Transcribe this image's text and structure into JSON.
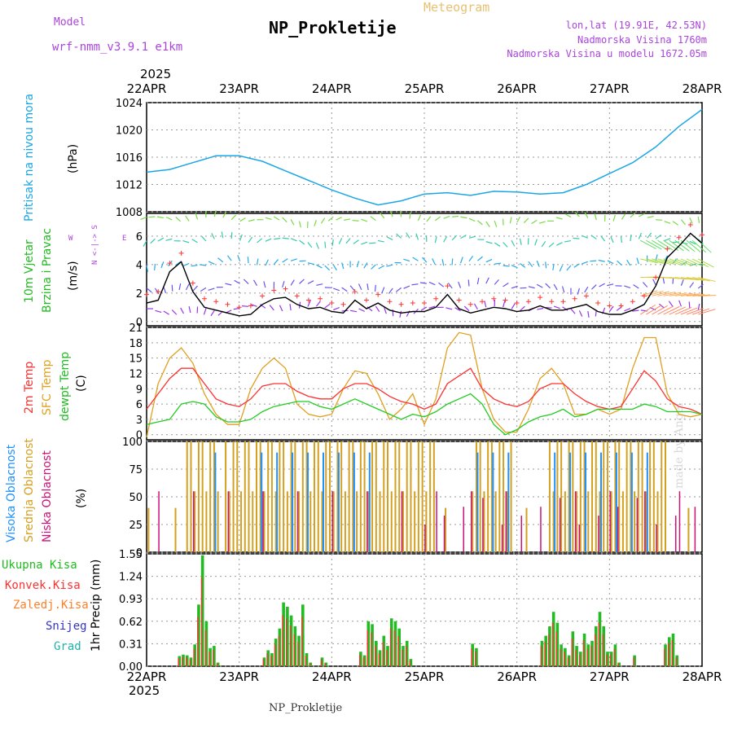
{
  "header": {
    "model_label": "Model",
    "model_name": "wrf-nmm_v3.9.1  e1km",
    "title": "NP_Prokletije",
    "subtitle": "Meteogram",
    "lonlat": "lon,lat (19.91E, 42.53N)",
    "elevation": "Nadmorska Visina 1760m",
    "model_elevation": "Nadmorska Visina u modelu 1672.05m",
    "watermark": "made by Angel",
    "footer": "NP_Prokletije"
  },
  "x_axis": {
    "year": "2025",
    "dates": [
      "22APR",
      "23APR",
      "24APR",
      "25APR",
      "26APR",
      "27APR",
      "28APR"
    ]
  },
  "colors": {
    "pressure": "#1aa6e6",
    "wind_speed": "#000000",
    "wind_gust": "#ff3333",
    "t2m": "#ff3030",
    "tsfc": "#e0a020",
    "dewpt": "#22cc22",
    "cloud_high": "#1e90ff",
    "cloud_mid": "#d4a020",
    "cloud_low": "#cc1177",
    "precip_total": "#22bb22",
    "precip_conv": "#ff3030",
    "precip_grid": "#ff7f27",
    "snow": "#3333cc",
    "graupel": "#20b2aa"
  },
  "panels": {
    "pressure": {
      "ylabel_name": "Pritisak na nivou mora",
      "unit": "(hPa)"
    },
    "wind": {
      "ylabel_line1": "10m Vjetar",
      "ylabel_line2": "Brzina i Pravac",
      "unit": "(m/s)",
      "compass_ns": "N <-|-> S",
      "compass_w": "W",
      "compass_e": "E"
    },
    "temp": {
      "label_t2m": "2m Temp",
      "label_tsfc": "SFC Temp",
      "label_dewpt": "dewpt Temp",
      "unit": "(C)"
    },
    "cloud": {
      "label_high": "Visoka Oblacnost",
      "label_mid": "Srednja Oblacnost",
      "label_low": "Niska Oblacnost",
      "unit": "(%)"
    },
    "precip": {
      "legend": [
        "Ukupna Kisa",
        "Konvek.Kisa",
        "Zaledj.Kisa",
        "Snijeg",
        "Grad"
      ],
      "ylabel": "1hr Precip (mm)"
    }
  },
  "chart_data": [
    {
      "type": "line",
      "title": "",
      "ylabel": "Pritisak na nivou mora (hPa)",
      "ylim": [
        1008,
        1024
      ],
      "yticks": [
        1008,
        1012,
        1016,
        1020,
        1024
      ],
      "x_hours": [
        0,
        6,
        12,
        18,
        24,
        30,
        36,
        42,
        48,
        54,
        60,
        66,
        72,
        78,
        84,
        90,
        96,
        102,
        108,
        114,
        120,
        126,
        132,
        138,
        144
      ],
      "series": [
        {
          "name": "Pritisak na nivou mora",
          "values": [
            1013.8,
            1014.2,
            1015.2,
            1016.2,
            1016.2,
            1015.4,
            1014,
            1012.6,
            1011.2,
            1010.0,
            1009.0,
            1009.6,
            1010.6,
            1010.8,
            1010.4,
            1011.0,
            1010.9,
            1010.6,
            1010.8,
            1012.0,
            1013.6,
            1015.2,
            1017.5,
            1020.5,
            1023.0
          ]
        }
      ]
    },
    {
      "type": "line",
      "title": "",
      "ylabel": "10m Vjetar Brzina i Pravac (m/s)",
      "ylim": [
        -0.3,
        7.6
      ],
      "yticks": [
        0,
        2,
        4,
        6
      ],
      "x_hours": [
        0,
        3,
        6,
        9,
        12,
        15,
        18,
        21,
        24,
        27,
        30,
        33,
        36,
        39,
        42,
        45,
        48,
        51,
        54,
        57,
        60,
        63,
        66,
        69,
        72,
        75,
        78,
        81,
        84,
        87,
        90,
        93,
        96,
        99,
        102,
        105,
        108,
        111,
        114,
        117,
        120,
        123,
        126,
        129,
        132,
        135,
        138,
        141,
        144
      ],
      "series": [
        {
          "name": "10m Vjetar",
          "values": [
            1.3,
            1.5,
            3.5,
            4.2,
            2.1,
            1.0,
            0.8,
            0.6,
            0.4,
            0.5,
            1.2,
            1.6,
            1.7,
            1.2,
            0.9,
            1.0,
            0.7,
            0.6,
            1.5,
            0.9,
            1.3,
            0.8,
            0.6,
            0.7,
            0.7,
            1.0,
            1.9,
            0.9,
            0.6,
            0.8,
            1.0,
            0.9,
            0.7,
            0.8,
            1.1,
            0.8,
            0.8,
            1.0,
            1.2,
            0.7,
            0.5,
            0.5,
            0.8,
            1.2,
            2.5,
            4.5,
            5.3,
            6.2,
            5.5
          ]
        }
      ]
    },
    {
      "type": "line",
      "title": "",
      "ylabel": "Temp (C)",
      "ylim": [
        -1,
        21
      ],
      "yticks": [
        0,
        3,
        6,
        9,
        12,
        15,
        18,
        21
      ],
      "x_hours": [
        0,
        3,
        6,
        9,
        12,
        15,
        18,
        21,
        24,
        27,
        30,
        33,
        36,
        39,
        42,
        45,
        48,
        51,
        54,
        57,
        60,
        63,
        66,
        69,
        72,
        75,
        78,
        81,
        84,
        87,
        90,
        93,
        96,
        99,
        102,
        105,
        108,
        111,
        114,
        117,
        120,
        123,
        126,
        129,
        132,
        135,
        138,
        141,
        144
      ],
      "series": [
        {
          "name": "2m Temp",
          "values": [
            5,
            8,
            11,
            13,
            13,
            10,
            7,
            6,
            5.5,
            7,
            9.5,
            10,
            10,
            8.5,
            7.5,
            7,
            7,
            9,
            10,
            10,
            9,
            7.5,
            6.5,
            6,
            5,
            6,
            10,
            11.5,
            13,
            9,
            7,
            6,
            5.5,
            6.5,
            9,
            10,
            10,
            8,
            6.5,
            5.5,
            5,
            5.5,
            9,
            12.5,
            10.5,
            7,
            5.5,
            5,
            4
          ]
        },
        {
          "name": "SFC Temp",
          "values": [
            -0.5,
            10,
            15,
            17,
            14,
            8,
            4,
            2,
            2,
            9,
            13,
            15,
            13,
            6,
            4,
            3.5,
            4,
            9,
            12.5,
            12,
            8,
            3,
            5,
            8,
            2,
            7,
            17,
            20,
            19.5,
            9,
            3,
            0.5,
            0.5,
            5,
            11,
            13,
            10,
            4,
            4,
            5,
            4,
            5,
            13,
            19,
            19,
            8,
            4,
            3.5,
            4
          ]
        },
        {
          "name": "dewpt Temp",
          "values": [
            2,
            2.5,
            3,
            6,
            6.5,
            6,
            3.5,
            2.5,
            2.5,
            3,
            4.5,
            5.5,
            6,
            6.5,
            6.5,
            5.5,
            5,
            6,
            7,
            6,
            5,
            4,
            3,
            4,
            3.5,
            4.5,
            6,
            7,
            8,
            6,
            2,
            0,
            1,
            2.5,
            3.5,
            4,
            5,
            3.5,
            4,
            5,
            5,
            5,
            5,
            6,
            5.5,
            4.5,
            4.5,
            4.5,
            4
          ]
        }
      ]
    },
    {
      "type": "bar",
      "title": "",
      "ylabel": "Oblacnost (%)",
      "ylim": [
        0,
        100
      ],
      "yticks": [
        0,
        25,
        50,
        75,
        100
      ],
      "notes": "hourly bars 0-144h",
      "series": [
        {
          "name": "Visoka Oblacnost",
          "values_hourly_summary": "high cloud near 100% during 16-60h, 84-94h, 102-132h; scattered elsewhere"
        },
        {
          "name": "Srednja Oblacnost",
          "values_hourly_summary": "mid cloud 100% in dense blocks 10-74h and 84-92h, 104-134h"
        },
        {
          "name": "Niska Oblacnost",
          "values_hourly_summary": "low cloud scattered 0-60% after 70h"
        }
      ]
    },
    {
      "type": "bar",
      "title": "",
      "ylabel": "1hr Precip (mm)",
      "ylim": [
        0,
        1.55
      ],
      "yticks": [
        0,
        0.31,
        0.62,
        0.93,
        1.24,
        1.55
      ],
      "x_hours": [
        8,
        9,
        10,
        11,
        12,
        13,
        14,
        15,
        16,
        17,
        18,
        30,
        31,
        32,
        33,
        34,
        35,
        36,
        37,
        38,
        39,
        40,
        41,
        42,
        45,
        46,
        55,
        56,
        57,
        58,
        59,
        60,
        61,
        62,
        63,
        64,
        65,
        66,
        67,
        68,
        84,
        85,
        102,
        103,
        104,
        105,
        106,
        107,
        108,
        109,
        110,
        111,
        112,
        113,
        114,
        115,
        116,
        117,
        118,
        119,
        120,
        121,
        122,
        126,
        134,
        135,
        136,
        137
      ],
      "series": [
        {
          "name": "Ukupna Kisa",
          "values": [
            0.14,
            0.16,
            0.15,
            0.12,
            0.3,
            0.85,
            1.53,
            0.62,
            0.25,
            0.28,
            0.05,
            0.12,
            0.22,
            0.18,
            0.38,
            0.52,
            0.88,
            0.82,
            0.7,
            0.55,
            0.42,
            0.85,
            0.18,
            0.05,
            0.12,
            0.05,
            0.2,
            0.15,
            0.62,
            0.58,
            0.35,
            0.22,
            0.42,
            0.28,
            0.66,
            0.62,
            0.52,
            0.28,
            0.35,
            0.1,
            0.31,
            0.25,
            0.35,
            0.42,
            0.55,
            0.75,
            0.6,
            0.3,
            0.25,
            0.15,
            0.48,
            0.28,
            0.2,
            0.45,
            0.3,
            0.35,
            0.55,
            0.75,
            0.55,
            0.2,
            0.2,
            0.3,
            0.05,
            0.15,
            0.3,
            0.4,
            0.45,
            0.15
          ]
        }
      ]
    }
  ]
}
